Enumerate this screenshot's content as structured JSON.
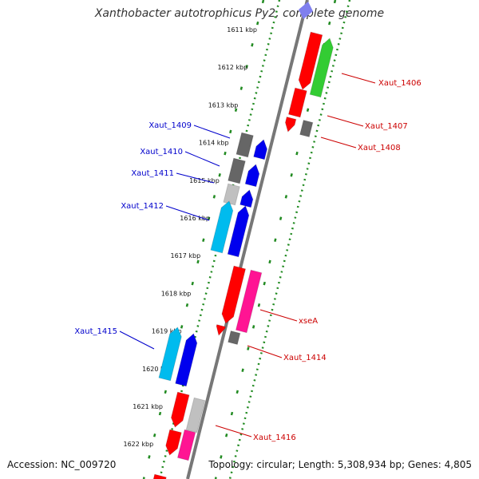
{
  "title": "Xanthobacter autotrophicus Py2, complete genome",
  "footer": {
    "accession": "Accession: NC_009720",
    "summary": "Topology: circular; Length: 5,308,934 bp; Genes: 4,805"
  },
  "colors": {
    "forward_label": "#0000cc",
    "reverse_label": "#cc0000",
    "backbone": "#777777",
    "dotted_track": "#228b22",
    "red": "#ff0000",
    "green": "#33cc33",
    "blue": "#0000ee",
    "cyan": "#00bbee",
    "magenta": "#ff1493",
    "dark_gray": "#666666",
    "light_gray": "#c0c0c0"
  },
  "kbp_ticks": [
    "1611 kbp",
    "1612 kbp",
    "1613 kbp",
    "1614 kbp",
    "1615 kbp",
    "1616 kbp",
    "1617 kbp",
    "1618 kbp",
    "1619 kbp",
    "1620 kbp",
    "1621 kbp",
    "1622 kbp"
  ],
  "genes": [
    {
      "label": "Xaut_1406",
      "strand": "reverse"
    },
    {
      "label": "Xaut_1407",
      "strand": "reverse"
    },
    {
      "label": "Xaut_1408",
      "strand": "reverse"
    },
    {
      "label": "Xaut_1409",
      "strand": "forward"
    },
    {
      "label": "Xaut_1410",
      "strand": "forward"
    },
    {
      "label": "Xaut_1411",
      "strand": "forward"
    },
    {
      "label": "Xaut_1412",
      "strand": "forward"
    },
    {
      "label": "xseA",
      "strand": "reverse"
    },
    {
      "label": "Xaut_1414",
      "strand": "reverse"
    },
    {
      "label": "Xaut_1415",
      "strand": "forward"
    },
    {
      "label": "Xaut_1416",
      "strand": "reverse"
    }
  ]
}
